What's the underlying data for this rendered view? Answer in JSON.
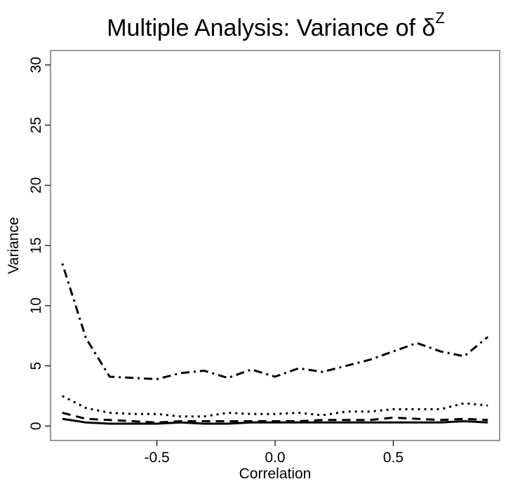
{
  "chart_data": {
    "type": "line",
    "title": "Multiple Analysis: Variance of δ",
    "title_superscript": "Z",
    "xlabel": "Correlation",
    "ylabel": "Variance",
    "xlim": [
      -0.95,
      0.95
    ],
    "ylim": [
      -1.2,
      31.2
    ],
    "x_ticks": [
      -0.5,
      0.0,
      0.5
    ],
    "x_tick_labels": [
      "-0.5",
      "0.0",
      "0.5"
    ],
    "y_ticks": [
      0,
      5,
      10,
      15,
      20,
      25,
      30
    ],
    "y_tick_labels": [
      "0",
      "5",
      "10",
      "15",
      "20",
      "25",
      "30"
    ],
    "grid": false,
    "legend": "none",
    "x": [
      -0.9,
      -0.8,
      -0.7,
      -0.6,
      -0.5,
      -0.4,
      -0.3,
      -0.2,
      -0.1,
      0.0,
      0.1,
      0.2,
      0.3,
      0.4,
      0.5,
      0.6,
      0.7,
      0.8,
      0.9
    ],
    "series": [
      {
        "style": "solid",
        "values": [
          0.6,
          0.3,
          0.2,
          0.2,
          0.2,
          0.3,
          0.2,
          0.2,
          0.3,
          0.3,
          0.3,
          0.3,
          0.3,
          0.3,
          0.3,
          0.3,
          0.3,
          0.4,
          0.3
        ]
      },
      {
        "style": "dashed",
        "values": [
          1.1,
          0.6,
          0.5,
          0.4,
          0.3,
          0.4,
          0.4,
          0.4,
          0.4,
          0.4,
          0.4,
          0.5,
          0.5,
          0.5,
          0.7,
          0.6,
          0.5,
          0.6,
          0.5
        ]
      },
      {
        "style": "dotted",
        "values": [
          2.5,
          1.5,
          1.1,
          1.0,
          1.0,
          0.8,
          0.8,
          1.1,
          1.0,
          1.0,
          1.1,
          0.9,
          1.2,
          1.2,
          1.4,
          1.4,
          1.4,
          1.9,
          1.7
        ]
      },
      {
        "style": "dotdash",
        "values": [
          13.5,
          7.3,
          4.1,
          4.0,
          3.9,
          4.4,
          4.6,
          4.0,
          4.7,
          4.1,
          4.8,
          4.5,
          5.0,
          5.5,
          6.2,
          6.9,
          6.2,
          5.8,
          7.4
        ]
      }
    ]
  }
}
